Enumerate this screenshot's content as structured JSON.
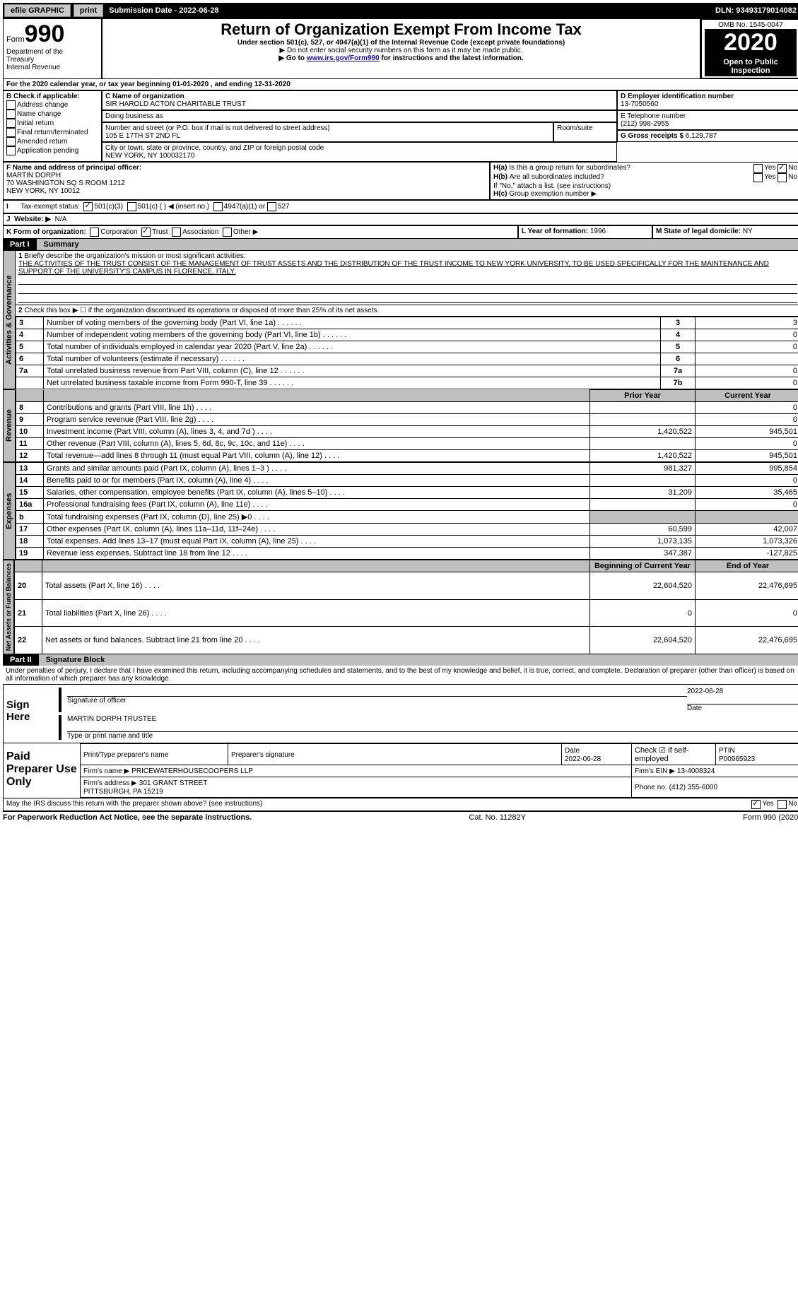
{
  "topbar": {
    "efile": "efile GRAPHIC",
    "print": "print",
    "submission_label": "Submission Date - ",
    "submission_date": "2022-06-28",
    "dln_label": "DLN: ",
    "dln": "93493179014082"
  },
  "header": {
    "form_word": "Form",
    "form_num": "990",
    "dept1": "Department of the",
    "dept2": "Treasury",
    "dept3": "Internal Revenue",
    "title": "Return of Organization Exempt From Income Tax",
    "subtitle": "Under section 501(c), 527, or 4947(a)(1) of the Internal Revenue Code (except private foundations)",
    "note1": "Do not enter social security numbers on this form as it may be made public.",
    "note2_pre": "Go to ",
    "note2_link": "www.irs.gov/Form990",
    "note2_post": " for instructions and the latest information.",
    "omb": "OMB No. 1545-0047",
    "year": "2020",
    "open1": "Open to Public",
    "open2": "Inspection"
  },
  "periodA": "For the 2020 calendar year, or tax year beginning 01-01-2020   , and ending 12-31-2020",
  "boxB": {
    "label": "B Check if applicable:",
    "items": [
      "Address change",
      "Name change",
      "Initial return",
      "Final return/terminated",
      "Amended return",
      "Application pending"
    ]
  },
  "boxC": {
    "name_label": "C Name of organization",
    "name": "SIR HAROLD ACTON CHARITABLE TRUST",
    "dba_label": "Doing business as",
    "street_label": "Number and street (or P.O. box if mail is not delivered to street address)",
    "room_label": "Room/suite",
    "street": "105 E 17TH ST 2ND FL",
    "city_label": "City or town, state or province, country, and ZIP or foreign postal code",
    "city": "NEW YORK, NY  100032170"
  },
  "boxD": {
    "label": "D Employer identification number",
    "value": "13-7050560"
  },
  "boxE": {
    "label": "E Telephone number",
    "value": "(212) 998-2955"
  },
  "boxG": {
    "label": "G Gross receipts $",
    "value": "6,129,787"
  },
  "boxF": {
    "label": "F Name and address of principal officer:",
    "name": "MARTIN DORPH",
    "addr1": "70 WASHINGTON SQ S ROOM 1212",
    "addr2": "NEW YORK, NY  10012"
  },
  "boxH": {
    "ha": "Is this a group return for subordinates?",
    "hb": "Are all subordinates included?",
    "hb_note": "If \"No,\" attach a list. (see instructions)",
    "hc": "Group exemption number ▶",
    "yes": "Yes",
    "no": "No",
    "ha_tag": "H(a)",
    "hb_tag": "H(b)",
    "hc_tag": "H(c)"
  },
  "boxI": {
    "label": "Tax-exempt status:",
    "o1": "501(c)(3)",
    "o2": "501(c) (   ) ◀ (insert no.)",
    "o3": "4947(a)(1) or",
    "o4": "527"
  },
  "boxJ": {
    "label": "Website: ▶",
    "value": "N/A"
  },
  "boxK": {
    "label": "K Form of organization:",
    "o1": "Corporation",
    "o2": "Trust",
    "o3": "Association",
    "o4": "Other ▶"
  },
  "boxL": {
    "label": "L Year of formation:",
    "value": "1996"
  },
  "boxM": {
    "label": "M State of legal domicile:",
    "value": "NY"
  },
  "part1": {
    "tag": "Part I",
    "title": "Summary",
    "line1_label": "Briefly describe the organization's mission or most significant activities:",
    "line1_text": "THE ACTIVITIES OF THE TRUST CONSIST OF THE MANAGEMENT OF TRUST ASSETS AND THE DISTRIBUTION OF THE TRUST INCOME TO NEW YORK UNIVERSITY, TO BE USED SPECIFICALLY FOR THE MAINTENANCE AND SUPPORT OF THE UNIVERSITY'S CAMPUS IN FLORENCE, ITALY.",
    "line2": "Check this box ▶ ☐  if the organization discontinued its operations or disposed of more than 25% of its net assets.",
    "left_tab_gov": "Activities & Governance",
    "left_tab_rev": "Revenue",
    "left_tab_exp": "Expenses",
    "left_tab_net": "Net Assets or Fund Balances",
    "col_prior": "Prior Year",
    "col_current": "Current Year",
    "col_begin": "Beginning of Current Year",
    "col_end": "End of Year",
    "rows_gov": [
      {
        "n": "3",
        "t": "Number of voting members of the governing body (Part VI, line 1a)",
        "rn": "3",
        "v": "3"
      },
      {
        "n": "4",
        "t": "Number of independent voting members of the governing body (Part VI, line 1b)",
        "rn": "4",
        "v": "0"
      },
      {
        "n": "5",
        "t": "Total number of individuals employed in calendar year 2020 (Part V, line 2a)",
        "rn": "5",
        "v": "0"
      },
      {
        "n": "6",
        "t": "Total number of volunteers (estimate if necessary)",
        "rn": "6",
        "v": ""
      },
      {
        "n": "7a",
        "t": "Total unrelated business revenue from Part VIII, column (C), line 12",
        "rn": "7a",
        "v": "0"
      },
      {
        "n": "",
        "t": "Net unrelated business taxable income from Form 990-T, line 39",
        "rn": "7b",
        "v": "0"
      }
    ],
    "rows_rev": [
      {
        "n": "8",
        "t": "Contributions and grants (Part VIII, line 1h)",
        "p": "",
        "c": "0"
      },
      {
        "n": "9",
        "t": "Program service revenue (Part VIII, line 2g)",
        "p": "",
        "c": "0"
      },
      {
        "n": "10",
        "t": "Investment income (Part VIII, column (A), lines 3, 4, and 7d )",
        "p": "1,420,522",
        "c": "945,501"
      },
      {
        "n": "11",
        "t": "Other revenue (Part VIII, column (A), lines 5, 6d, 8c, 9c, 10c, and 11e)",
        "p": "",
        "c": "0"
      },
      {
        "n": "12",
        "t": "Total revenue—add lines 8 through 11 (must equal Part VIII, column (A), line 12)",
        "p": "1,420,522",
        "c": "945,501"
      }
    ],
    "rows_exp": [
      {
        "n": "13",
        "t": "Grants and similar amounts paid (Part IX, column (A), lines 1–3 )",
        "p": "981,327",
        "c": "995,854"
      },
      {
        "n": "14",
        "t": "Benefits paid to or for members (Part IX, column (A), line 4)",
        "p": "",
        "c": "0"
      },
      {
        "n": "15",
        "t": "Salaries, other compensation, employee benefits (Part IX, column (A), lines 5–10)",
        "p": "31,209",
        "c": "35,465"
      },
      {
        "n": "16a",
        "t": "Professional fundraising fees (Part IX, column (A), line 11e)",
        "p": "",
        "c": "0"
      },
      {
        "n": "b",
        "t": "Total fundraising expenses (Part IX, column (D), line 25) ▶0",
        "p": "",
        "c": "",
        "shade": true
      },
      {
        "n": "17",
        "t": "Other expenses (Part IX, column (A), lines 11a–11d, 11f–24e)",
        "p": "60,599",
        "c": "42,007"
      },
      {
        "n": "18",
        "t": "Total expenses. Add lines 13–17 (must equal Part IX, column (A), line 25)",
        "p": "1,073,135",
        "c": "1,073,326"
      },
      {
        "n": "19",
        "t": "Revenue less expenses. Subtract line 18 from line 12",
        "p": "347,387",
        "c": "-127,825"
      }
    ],
    "rows_net": [
      {
        "n": "20",
        "t": "Total assets (Part X, line 16)",
        "p": "22,604,520",
        "c": "22,476,695"
      },
      {
        "n": "21",
        "t": "Total liabilities (Part X, line 26)",
        "p": "0",
        "c": "0"
      },
      {
        "n": "22",
        "t": "Net assets or fund balances. Subtract line 21 from line 20",
        "p": "22,604,520",
        "c": "22,476,695"
      }
    ]
  },
  "part2": {
    "tag": "Part II",
    "title": "Signature Block",
    "decl": "Under penalties of perjury, I declare that I have examined this return, including accompanying schedules and statements, and to the best of my knowledge and belief, it is true, correct, and complete. Declaration of preparer (other than officer) is based on all information of which preparer has any knowledge.",
    "sign_here": "Sign Here",
    "sig_officer": "Signature of officer",
    "sig_date": "Date",
    "sig_date_val": "2022-06-28",
    "name_title": "MARTIN DORPH  TRUSTEE",
    "name_title_label": "Type or print name and title",
    "paid": "Paid Preparer Use Only",
    "prep_name_label": "Print/Type preparer's name",
    "prep_sig_label": "Preparer's signature",
    "prep_date_label": "Date",
    "prep_date": "2022-06-28",
    "self_emp": "Check ☑ if self-employed",
    "ptin_label": "PTIN",
    "ptin": "P00965923",
    "firm_name_label": "Firm's name   ▶",
    "firm_name": "PRICEWATERHOUSECOOPERS LLP",
    "firm_ein_label": "Firm's EIN ▶",
    "firm_ein": "13-4008324",
    "firm_addr_label": "Firm's address ▶",
    "firm_addr1": "301 GRANT STREET",
    "firm_addr2": "PITTSBURGH, PA  15219",
    "phone_label": "Phone no.",
    "phone": "(412) 355-6000",
    "discuss": "May the IRS discuss this return with the preparer shown above? (see instructions)",
    "yes": "Yes",
    "no": "No"
  },
  "footer": {
    "left": "For Paperwork Reduction Act Notice, see the separate instructions.",
    "mid": "Cat. No. 11282Y",
    "right": "Form 990 (2020)"
  }
}
